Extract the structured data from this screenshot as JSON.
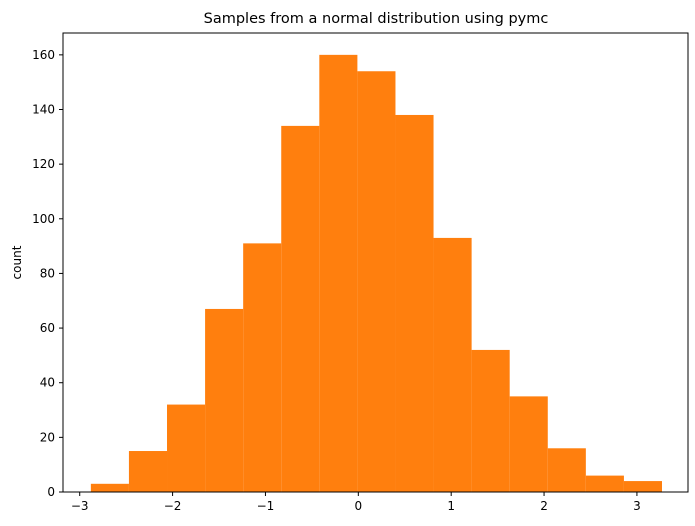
{
  "chart_data": {
    "type": "bar",
    "subtype": "histogram",
    "title": "Samples from a normal distribution using pymc",
    "xlabel": "",
    "ylabel": "count",
    "bar_color": "#ff7f0e",
    "xlim": [
      -3.18,
      3.55
    ],
    "ylim": [
      0,
      168
    ],
    "x_ticks": [
      -3,
      -2,
      -1,
      0,
      1,
      2,
      3
    ],
    "x_tick_labels": [
      "−3",
      "−2",
      "−1",
      "0",
      "1",
      "2",
      "3"
    ],
    "y_ticks": [
      0,
      20,
      40,
      60,
      80,
      100,
      120,
      140,
      160
    ],
    "y_tick_labels": [
      "0",
      "20",
      "40",
      "60",
      "80",
      "100",
      "120",
      "140",
      "160"
    ],
    "bin_edges": [
      -2.88,
      -2.47,
      -2.06,
      -1.65,
      -1.24,
      -0.83,
      -0.42,
      -0.01,
      0.4,
      0.81,
      1.22,
      1.63,
      2.04,
      2.45,
      2.86,
      3.27
    ],
    "counts": [
      3,
      15,
      32,
      67,
      91,
      134,
      160,
      154,
      138,
      93,
      52,
      35,
      16,
      6,
      4
    ],
    "grid": false,
    "legend": "none"
  }
}
